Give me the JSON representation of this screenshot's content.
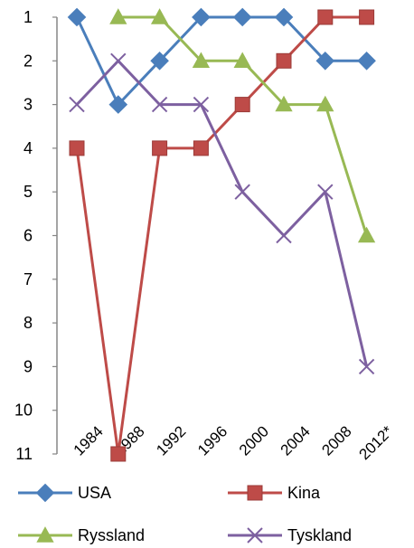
{
  "chart_data": {
    "type": "line",
    "categories": [
      "1984",
      "1988",
      "1992",
      "1996",
      "2000",
      "2004",
      "2008",
      "2012*"
    ],
    "series": [
      {
        "name": "USA",
        "color": "#4a7ebb",
        "marker": "diamond",
        "values": [
          1,
          3,
          2,
          1,
          1,
          1,
          2,
          2
        ]
      },
      {
        "name": "Kina",
        "color": "#be4b48",
        "marker": "square",
        "values": [
          4,
          11,
          4,
          4,
          3,
          2,
          1,
          1
        ]
      },
      {
        "name": "Ryssland",
        "color": "#98b954",
        "marker": "triangle",
        "values": [
          null,
          1,
          1,
          2,
          2,
          3,
          3,
          6
        ]
      },
      {
        "name": "Tyskland",
        "color": "#7d60a0",
        "marker": "x",
        "values": [
          3,
          2,
          3,
          3,
          5,
          6,
          5,
          9
        ]
      }
    ],
    "yticks": [
      1,
      2,
      3,
      4,
      5,
      6,
      7,
      8,
      9,
      10,
      11
    ],
    "ylim": [
      1,
      11
    ],
    "y_inverted": true,
    "grid": false,
    "legend_position": "bottom",
    "title": "",
    "xlabel": "",
    "ylabel": ""
  }
}
